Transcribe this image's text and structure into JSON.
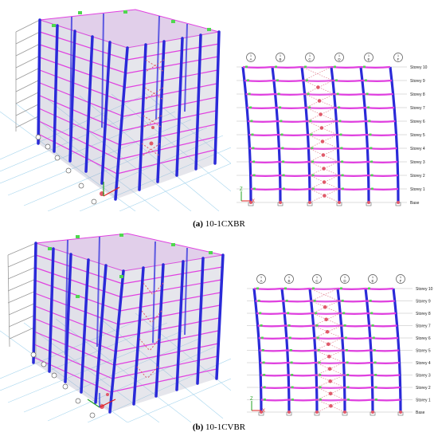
{
  "panels": [
    {
      "caption_letter": "(a)",
      "caption_text": "10-1CXBR",
      "columns": [
        "A",
        "B",
        "C",
        "D",
        "E",
        "F"
      ],
      "column_numbers": [
        "1",
        "1",
        "1",
        "1",
        "1",
        "1"
      ],
      "storeys": [
        "Storey 10",
        "Storey 9",
        "Storey 8",
        "Storey 7",
        "Storey 6",
        "Storey 5",
        "Storey 4",
        "Storey 3",
        "Storey 2",
        "Storey 1",
        "Base"
      ],
      "axis_labels": {
        "z": "Z",
        "x": "X"
      }
    },
    {
      "caption_letter": "(b)",
      "caption_text": "10-1CVBR",
      "columns": [
        "A",
        "B",
        "C",
        "D",
        "E",
        "F"
      ],
      "column_numbers": [
        "1",
        "1",
        "1",
        "1",
        "1",
        "1"
      ],
      "storeys": [
        "Storey 10",
        "Storey 9",
        "Storey 8",
        "Storey 7",
        "Storey 6",
        "Storey 5",
        "Storey 4",
        "Storey 3",
        "Storey 2",
        "Storey 1",
        "Base"
      ],
      "axis_labels": {
        "z": "Z",
        "x": "X"
      }
    }
  ],
  "colors": {
    "column": "#2a2ad8",
    "beam": "#e040e0",
    "hinge": "#e05a6a",
    "joint": "#4fd84f",
    "grid": "#9fd0ea",
    "brace": "#e08090"
  }
}
